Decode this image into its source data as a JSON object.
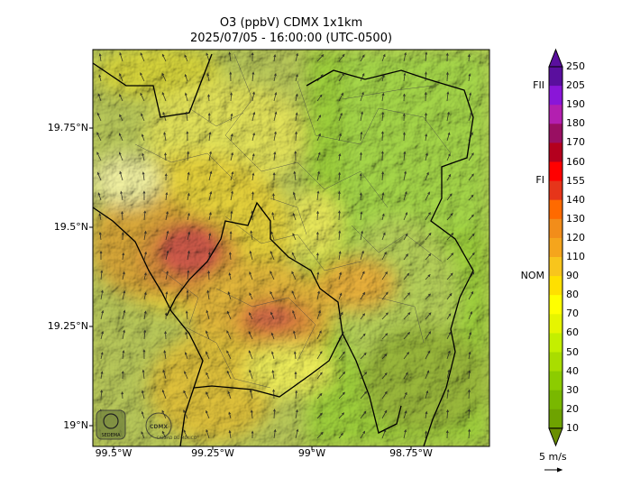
{
  "title": {
    "line1": "O3 (ppbV) CDMX 1x1km",
    "line2": "2025/07/05 - 16:00:00 (UTC-0500)"
  },
  "axes": {
    "y_ticks": [
      "19.75°N",
      "19.5°N",
      "19.25°N",
      "19°N"
    ],
    "x_ticks": [
      "99.5°W",
      "99.25°W",
      "99°W",
      "98.75°W"
    ]
  },
  "colorbar": {
    "levels": [
      "250",
      "205",
      "190",
      "180",
      "170",
      "160",
      "155",
      "140",
      "130",
      "120",
      "110",
      "90",
      "80",
      "70",
      "60",
      "50",
      "40",
      "30",
      "20",
      "10"
    ],
    "colors": [
      "#5a0f9e",
      "#8a16d8",
      "#b31fb0",
      "#990f62",
      "#b4001e",
      "#ff0000",
      "#e6351a",
      "#ff6a00",
      "#f28d1a",
      "#f5a51c",
      "#f8c51c",
      "#ffe000",
      "#ffff00",
      "#e6f500",
      "#c4ef00",
      "#a9dd00",
      "#8ccc00",
      "#79b800",
      "#6ea300",
      "#6a8f00"
    ],
    "references": [
      "FII",
      "FI",
      "NOM"
    ]
  },
  "wind_reference": "5 m/s",
  "logos": [
    "SEDEMA",
    "CIUDAD DE MÉXICO"
  ]
}
